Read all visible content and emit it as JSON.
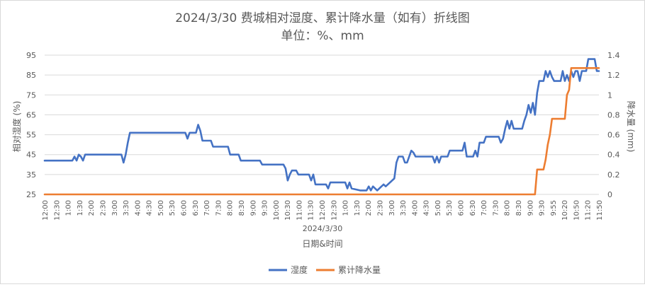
{
  "chart_data": {
    "type": "line",
    "title": "2024/3/30 费城相对湿度、累计降水量（如有）折线图",
    "subtitle": "单位：%、mm",
    "xlabel_date": "2024/3/30",
    "xlabel": "日期&时间",
    "ylabel_left": "相对湿度 (%)",
    "ylabel_right": "降水量 (mm)",
    "y_left_range": [
      25,
      95
    ],
    "y_left_ticks": [
      "25",
      "35",
      "45",
      "55",
      "65",
      "75",
      "85",
      "95"
    ],
    "y_right_range": [
      0,
      1.4
    ],
    "y_right_ticks": [
      "0",
      "0.2",
      "0.4",
      "0.6",
      "0.8",
      "1",
      "1.2",
      "1.4"
    ],
    "x_ticks": [
      "12:00",
      "12:30",
      "1:00",
      "1:30",
      "2:00",
      "2:30",
      "3:00",
      "3:30",
      "4:00",
      "4:30",
      "5:00",
      "5:30",
      "6:00",
      "6:30",
      "7:00",
      "7:30",
      "8:00",
      "8:30",
      "9:00",
      "9:30",
      "10:00",
      "10:30",
      "11:00",
      "11:30",
      "12:00",
      "12:30",
      "1:00",
      "1:30",
      "2:00",
      "2:30",
      "3:00",
      "3:30",
      "4:00",
      "4:30",
      "5:00",
      "5:30",
      "6:00",
      "6:30",
      "7:00",
      "7:30",
      "8:00",
      "8:30",
      "9:00",
      "9:30",
      "9:55",
      "10:20",
      "10:50",
      "11:20",
      "11:50"
    ],
    "grid": true,
    "legend_position": "bottom",
    "series": [
      {
        "name": "湿度",
        "axis": "left",
        "color": "#4472c4",
        "points": [
          [
            0,
            42
          ],
          [
            13,
            42
          ],
          [
            14,
            44
          ],
          [
            15,
            42
          ],
          [
            16,
            45
          ],
          [
            17,
            44
          ],
          [
            18,
            42
          ],
          [
            19,
            45
          ],
          [
            36,
            45
          ],
          [
            37,
            41
          ],
          [
            38,
            45
          ],
          [
            39,
            51
          ],
          [
            40,
            56
          ],
          [
            66,
            56
          ],
          [
            67,
            53
          ],
          [
            68,
            56
          ],
          [
            71,
            56
          ],
          [
            72,
            60
          ],
          [
            73,
            57
          ],
          [
            74,
            52
          ],
          [
            78,
            52
          ],
          [
            79,
            49
          ],
          [
            86,
            49
          ],
          [
            87,
            45
          ],
          [
            91,
            45
          ],
          [
            92,
            42
          ],
          [
            101,
            42
          ],
          [
            102,
            40
          ],
          [
            112,
            40
          ],
          [
            113,
            38
          ],
          [
            114,
            32
          ],
          [
            115,
            35
          ],
          [
            116,
            37
          ],
          [
            118,
            37
          ],
          [
            119,
            35
          ],
          [
            124,
            35
          ],
          [
            125,
            32
          ],
          [
            126,
            35
          ],
          [
            127,
            30
          ],
          [
            132,
            30
          ],
          [
            133,
            28
          ],
          [
            134,
            31
          ],
          [
            141,
            31
          ],
          [
            142,
            28
          ],
          [
            143,
            31
          ],
          [
            144,
            28
          ],
          [
            148,
            27
          ],
          [
            151,
            27
          ],
          [
            152,
            29
          ],
          [
            153,
            27
          ],
          [
            154,
            29
          ],
          [
            156,
            27
          ],
          [
            158,
            29
          ],
          [
            159,
            30
          ],
          [
            160,
            29
          ],
          [
            164,
            33
          ],
          [
            165,
            41
          ],
          [
            166,
            44
          ],
          [
            168,
            44
          ],
          [
            169,
            41
          ],
          [
            170,
            41
          ],
          [
            171,
            44
          ],
          [
            172,
            47
          ],
          [
            173,
            46
          ],
          [
            174,
            44
          ],
          [
            182,
            44
          ],
          [
            183,
            41
          ],
          [
            184,
            44
          ],
          [
            185,
            41
          ],
          [
            186,
            44
          ],
          [
            189,
            44
          ],
          [
            190,
            47
          ],
          [
            196,
            47
          ],
          [
            197,
            51
          ],
          [
            198,
            44
          ],
          [
            201,
            44
          ],
          [
            202,
            47
          ],
          [
            203,
            44
          ],
          [
            204,
            51
          ],
          [
            206,
            51
          ],
          [
            207,
            54
          ],
          [
            213,
            54
          ],
          [
            214,
            51
          ],
          [
            215,
            53
          ],
          [
            216,
            58
          ],
          [
            217,
            62
          ],
          [
            218,
            58
          ],
          [
            219,
            62
          ],
          [
            220,
            58
          ],
          [
            224,
            58
          ],
          [
            225,
            62
          ],
          [
            226,
            65
          ],
          [
            227,
            70
          ],
          [
            228,
            66
          ],
          [
            229,
            71
          ],
          [
            230,
            65
          ],
          [
            231,
            76
          ],
          [
            232,
            82
          ],
          [
            234,
            82
          ],
          [
            235,
            87
          ],
          [
            236,
            84
          ],
          [
            237,
            87
          ],
          [
            238,
            84
          ],
          [
            239,
            82
          ],
          [
            242,
            82
          ],
          [
            243,
            87
          ],
          [
            244,
            82
          ],
          [
            245,
            85
          ],
          [
            246,
            82
          ],
          [
            247,
            87
          ],
          [
            248,
            84
          ],
          [
            249,
            87
          ],
          [
            250,
            87
          ],
          [
            251,
            82
          ],
          [
            252,
            87
          ],
          [
            254,
            87
          ],
          [
            255,
            93
          ],
          [
            258,
            93
          ],
          [
            259,
            87
          ],
          [
            260,
            87
          ]
        ]
      },
      {
        "name": "累计降水量",
        "axis": "right",
        "color": "#ed7d31",
        "points": [
          [
            0,
            0
          ],
          [
            230,
            0
          ],
          [
            231,
            0.25
          ],
          [
            233,
            0.25
          ],
          [
            234,
            0.25
          ],
          [
            235,
            0.35
          ],
          [
            236,
            0.5
          ],
          [
            237,
            0.6
          ],
          [
            238,
            0.76
          ],
          [
            244,
            0.76
          ],
          [
            245,
            1.0
          ],
          [
            246,
            1.05
          ],
          [
            247,
            1.27
          ],
          [
            256,
            1.27
          ],
          [
            257,
            1.27
          ],
          [
            260,
            1.27
          ]
        ]
      }
    ]
  }
}
